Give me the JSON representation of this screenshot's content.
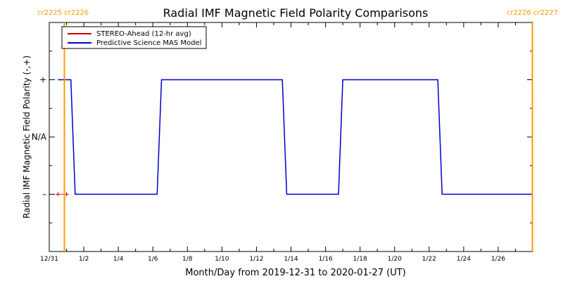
{
  "chart_data": {
    "type": "line",
    "title": "Radial IMF Magnetic Field Polarity Comparisons",
    "xlabel": "Month/Day from 2019-12-31 to 2020-01-27 (UT)",
    "ylabel": "Radial IMF Magnetic Field Polarity (-,+)",
    "x_range": [
      "2019-12-31 00:00",
      "2020-01-28 00:00"
    ],
    "x_ticks": [
      {
        "label": "12/31",
        "date": "2019-12-31"
      },
      {
        "label": "1/2",
        "date": "2020-01-02"
      },
      {
        "label": "1/4",
        "date": "2020-01-04"
      },
      {
        "label": "1/6",
        "date": "2020-01-06"
      },
      {
        "label": "1/8",
        "date": "2020-01-08"
      },
      {
        "label": "1/10",
        "date": "2020-01-10"
      },
      {
        "label": "1/12",
        "date": "2020-01-12"
      },
      {
        "label": "1/14",
        "date": "2020-01-14"
      },
      {
        "label": "1/16",
        "date": "2020-01-16"
      },
      {
        "label": "1/18",
        "date": "2020-01-18"
      },
      {
        "label": "1/20",
        "date": "2020-01-20"
      },
      {
        "label": "1/22",
        "date": "2020-01-22"
      },
      {
        "label": "1/24",
        "date": "2020-01-24"
      },
      {
        "label": "1/26",
        "date": "2020-01-26"
      }
    ],
    "y_ticks": [
      "+",
      "N/A",
      "–"
    ],
    "y_levels": {
      "+": 1,
      "N/A": 0,
      "–": -1
    },
    "y_range": [
      -2,
      2
    ],
    "legend": {
      "position": "top-left",
      "entries": [
        {
          "name": "STEREO-Ahead (12-hr avg)",
          "color": "#cc0000"
        },
        {
          "name": "Predictive Science MAS Model",
          "color": "#0000cc"
        }
      ]
    },
    "rotation_markers": [
      {
        "left": "cr2225",
        "right": "cr2226",
        "date": "2019-12-31 21:00"
      },
      {
        "left": "cr2226",
        "right": "cr2227",
        "date": "2020-01-27 23:30"
      }
    ],
    "series": [
      {
        "name": "Predictive Science MAS Model",
        "color": "#0000cc",
        "points": [
          [
            "2019-12-31 12:00",
            1
          ],
          [
            "2020-01-01 06:00",
            1
          ],
          [
            "2020-01-01 12:00",
            -1
          ],
          [
            "2020-01-06 06:00",
            -1
          ],
          [
            "2020-01-06 12:00",
            1
          ],
          [
            "2020-01-13 12:00",
            1
          ],
          [
            "2020-01-13 18:00",
            -1
          ],
          [
            "2020-01-16 18:00",
            -1
          ],
          [
            "2020-01-17 00:00",
            1
          ],
          [
            "2020-01-22 12:00",
            1
          ],
          [
            "2020-01-22 18:00",
            -1
          ],
          [
            "2020-01-28 00:00",
            -1
          ]
        ]
      },
      {
        "name": "STEREO-Ahead (12-hr avg)",
        "color": "#cc0000",
        "points": [
          [
            "2019-12-31 12:00",
            -1
          ],
          [
            "2020-01-01 00:00",
            -1
          ]
        ]
      }
    ],
    "marker_color": "#ff9900",
    "axis_color": "#000000"
  }
}
